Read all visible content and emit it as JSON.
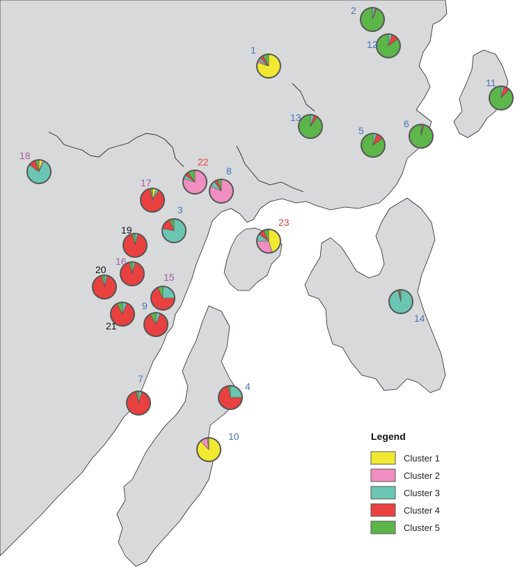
{
  "legend": {
    "title": "Legend",
    "items": [
      {
        "label": "Cluster 1",
        "color": "#f1e931"
      },
      {
        "label": "Cluster 2",
        "color": "#f18ec0"
      },
      {
        "label": "Cluster 3",
        "color": "#6ac6b3"
      },
      {
        "label": "Cluster 4",
        "color": "#e84140"
      },
      {
        "label": "Cluster 5",
        "color": "#5cb64a"
      }
    ]
  },
  "label_colors": {
    "blue": "#4a73b7",
    "purple": "#a15c9b",
    "red": "#e84140",
    "black": "#111111"
  },
  "sites": [
    {
      "id": "1",
      "label_color": "blue",
      "fractions": [
        0.8,
        0.03,
        0.04,
        0.05,
        0.08
      ]
    },
    {
      "id": "2",
      "label_color": "blue",
      "fractions": [
        0,
        0,
        0.04,
        0.02,
        0.94
      ]
    },
    {
      "id": "3",
      "label_color": "blue",
      "fractions": [
        0,
        0,
        0.78,
        0.16,
        0.06
      ]
    },
    {
      "id": "4",
      "label_color": "blue",
      "fractions": [
        0,
        0,
        0.25,
        0.72,
        0.03
      ]
    },
    {
      "id": "5",
      "label_color": "blue",
      "fractions": [
        0,
        0,
        0.05,
        0.1,
        0.85
      ]
    },
    {
      "id": "6",
      "label_color": "blue",
      "fractions": [
        0,
        0,
        0.02,
        0.02,
        0.96
      ]
    },
    {
      "id": "7",
      "label_color": "blue",
      "fractions": [
        0,
        0,
        0.05,
        0.92,
        0.03
      ]
    },
    {
      "id": "8",
      "label_color": "blue",
      "fractions": [
        0,
        0.82,
        0.08,
        0.05,
        0.05
      ]
    },
    {
      "id": "9",
      "label_color": "blue",
      "fractions": [
        0,
        0,
        0.06,
        0.86,
        0.08
      ]
    },
    {
      "id": "10",
      "label_color": "blue",
      "fractions": [
        0.88,
        0.1,
        0,
        0,
        0.02
      ]
    },
    {
      "id": "11",
      "label_color": "blue",
      "fractions": [
        0,
        0,
        0.04,
        0.08,
        0.88
      ]
    },
    {
      "id": "12",
      "label_color": "blue",
      "fractions": [
        0,
        0,
        0.05,
        0.1,
        0.85
      ]
    },
    {
      "id": "13",
      "label_color": "blue",
      "fractions": [
        0,
        0,
        0.05,
        0.05,
        0.9
      ]
    },
    {
      "id": "14",
      "label_color": "blue",
      "fractions": [
        0,
        0,
        0.96,
        0.02,
        0.02
      ]
    },
    {
      "id": "15",
      "label_color": "purple",
      "fractions": [
        0,
        0,
        0.25,
        0.68,
        0.07
      ]
    },
    {
      "id": "16",
      "label_color": "purple",
      "fractions": [
        0,
        0,
        0.04,
        0.92,
        0.04
      ]
    },
    {
      "id": "17",
      "label_color": "purple",
      "fractions": [
        0.05,
        0,
        0.04,
        0.88,
        0.03
      ]
    },
    {
      "id": "18",
      "label_color": "purple",
      "fractions": [
        0.05,
        0.02,
        0.78,
        0.1,
        0.05
      ]
    },
    {
      "id": "19",
      "label_color": "black",
      "fractions": [
        0,
        0,
        0.04,
        0.92,
        0.04
      ]
    },
    {
      "id": "20",
      "label_color": "black",
      "fractions": [
        0,
        0,
        0.04,
        0.92,
        0.04
      ]
    },
    {
      "id": "21",
      "label_color": "black",
      "fractions": [
        0,
        0,
        0.06,
        0.86,
        0.08
      ]
    },
    {
      "id": "22",
      "label_color": "red",
      "fractions": [
        0,
        0.8,
        0.05,
        0.05,
        0.1
      ]
    },
    {
      "id": "23",
      "label_color": "red",
      "fractions": [
        0.45,
        0.3,
        0.1,
        0.08,
        0.07
      ]
    }
  ]
}
